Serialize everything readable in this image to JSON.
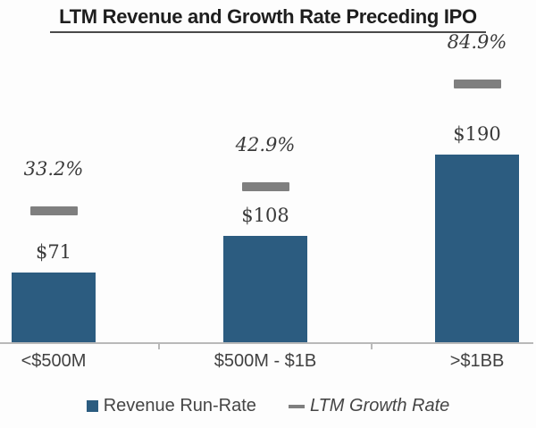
{
  "title": {
    "text": "LTM Revenue and Growth Rate Preceding IPO"
  },
  "chart_data": {
    "type": "bar",
    "title": "LTM Revenue and Growth Rate Preceding IPO",
    "categories": [
      "<$500M",
      "$500M - $1B",
      ">$1BB"
    ],
    "series": [
      {
        "name": "Revenue Run-Rate",
        "render": "bar",
        "unit": "$M (LTM revenue run-rate)",
        "values": [
          71,
          108,
          190
        ],
        "labels": [
          "$71",
          "$108",
          "$190"
        ],
        "color": "#2c5c80"
      },
      {
        "name": "LTM Growth Rate",
        "render": "dash-marker",
        "unit": "%",
        "values": [
          33.2,
          42.9,
          84.9
        ],
        "labels": [
          "33.2%",
          "42.9%",
          "84.9%"
        ],
        "color": "#7f7f7f"
      }
    ],
    "xlabel": "",
    "ylabel": "",
    "grid": false,
    "legend_position": "bottom",
    "axis": {
      "baseline": true,
      "tick_marks_between_categories": true
    }
  },
  "legend": {
    "items": [
      {
        "label": "Revenue Run-Rate",
        "swatch": "square",
        "color": "#2c5c80",
        "italic": false
      },
      {
        "label": "LTM Growth Rate",
        "swatch": "dash",
        "color": "#7f7f7f",
        "italic": true
      }
    ]
  },
  "colors": {
    "bar": "#2c5c80",
    "dash": "#7f7f7f",
    "axis": "#b9b9b9",
    "label_text": "#3a3a3a",
    "title_text": "#1e1e1e"
  }
}
